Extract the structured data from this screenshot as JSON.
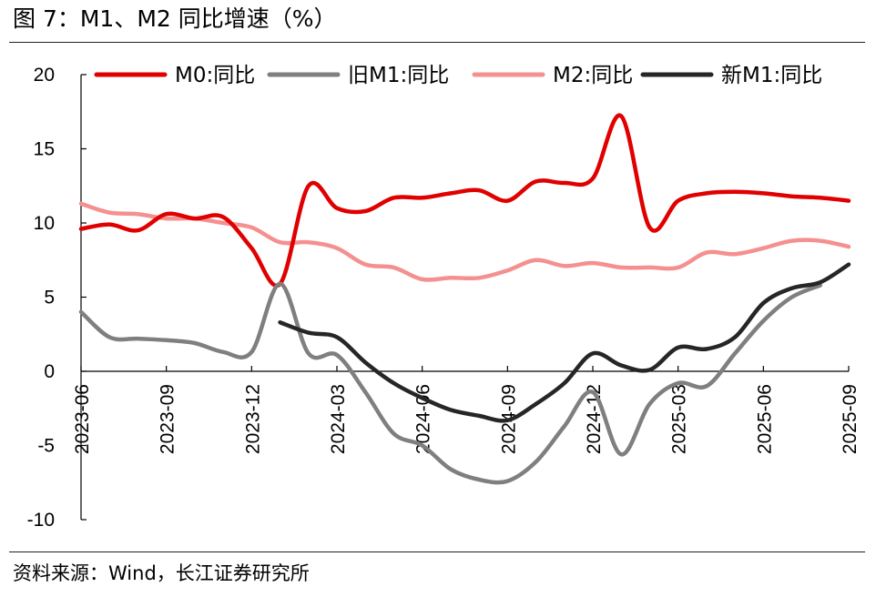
{
  "figure": {
    "title": "图 7：M1、M2 同比增速（%）",
    "source": "资料来源：Wind，长江证券研究所"
  },
  "chart_data": {
    "type": "line",
    "ylim": [
      -10,
      20
    ],
    "yticks": [
      20,
      15,
      10,
      5,
      0,
      -5,
      -10
    ],
    "x_start": "2023-06",
    "x_end": "2025-09",
    "xticks": [
      "2023-06",
      "2023-09",
      "2023-12",
      "2024-03",
      "2024-06",
      "2024-09",
      "2024-12",
      "2025-03",
      "2025-06",
      "2025-09"
    ],
    "legend_position": "top",
    "grid": false,
    "series": [
      {
        "name": "M0:同比",
        "color": "#e00000",
        "x": [
          "2023-06",
          "2023-07",
          "2023-08",
          "2023-09",
          "2023-10",
          "2023-11",
          "2023-12",
          "2024-01",
          "2024-02",
          "2024-03",
          "2024-04",
          "2024-05",
          "2024-06",
          "2024-07",
          "2024-08",
          "2024-09",
          "2024-10",
          "2024-11",
          "2024-12",
          "2025-01",
          "2025-02",
          "2025-03",
          "2025-04",
          "2025-05",
          "2025-06",
          "2025-07",
          "2025-08",
          "2025-09"
        ],
        "values": [
          9.6,
          9.9,
          9.5,
          10.6,
          10.3,
          10.4,
          8.3,
          5.9,
          12.5,
          11.0,
          10.8,
          11.7,
          11.7,
          12.0,
          12.2,
          11.5,
          12.8,
          12.7,
          13.0,
          17.2,
          9.7,
          11.5,
          12.0,
          12.1,
          12.0,
          11.8,
          11.7,
          11.5
        ]
      },
      {
        "name": "旧M1:同比",
        "color": "#7f7f7f",
        "x": [
          "2023-06",
          "2023-07",
          "2023-08",
          "2023-09",
          "2023-10",
          "2023-11",
          "2023-12",
          "2024-01",
          "2024-02",
          "2024-03",
          "2024-04",
          "2024-05",
          "2024-06",
          "2024-07",
          "2024-08",
          "2024-09",
          "2024-10",
          "2024-11",
          "2024-12",
          "2025-01",
          "2025-02",
          "2025-03",
          "2025-04",
          "2025-05",
          "2025-06",
          "2025-07",
          "2025-08"
        ],
        "values": [
          4.0,
          2.3,
          2.2,
          2.1,
          1.9,
          1.3,
          1.3,
          5.9,
          1.2,
          1.1,
          -1.4,
          -4.2,
          -5.0,
          -6.6,
          -7.3,
          -7.4,
          -6.1,
          -3.7,
          -1.4,
          -5.6,
          -2.2,
          -0.8,
          -1.0,
          1.2,
          3.4,
          5.0,
          5.8
        ]
      },
      {
        "name": "M2:同比",
        "color": "#f59090",
        "x": [
          "2023-06",
          "2023-07",
          "2023-08",
          "2023-09",
          "2023-10",
          "2023-11",
          "2023-12",
          "2024-01",
          "2024-02",
          "2024-03",
          "2024-04",
          "2024-05",
          "2024-06",
          "2024-07",
          "2024-08",
          "2024-09",
          "2024-10",
          "2024-11",
          "2024-12",
          "2025-01",
          "2025-02",
          "2025-03",
          "2025-04",
          "2025-05",
          "2025-06",
          "2025-07",
          "2025-08",
          "2025-09"
        ],
        "values": [
          11.3,
          10.7,
          10.6,
          10.3,
          10.3,
          10.0,
          9.7,
          8.7,
          8.7,
          8.3,
          7.2,
          7.0,
          6.2,
          6.3,
          6.3,
          6.8,
          7.5,
          7.1,
          7.3,
          7.0,
          7.0,
          7.0,
          8.0,
          7.9,
          8.3,
          8.8,
          8.8,
          8.4
        ]
      },
      {
        "name": "新M1:同比",
        "color": "#262626",
        "x": [
          "2024-01",
          "2024-02",
          "2024-03",
          "2024-04",
          "2024-05",
          "2024-06",
          "2024-07",
          "2024-08",
          "2024-09",
          "2024-10",
          "2024-11",
          "2024-12",
          "2025-01",
          "2025-02",
          "2025-03",
          "2025-04",
          "2025-05",
          "2025-06",
          "2025-07",
          "2025-08",
          "2025-09"
        ],
        "values": [
          3.3,
          2.6,
          2.3,
          0.6,
          -0.8,
          -1.8,
          -2.6,
          -3.0,
          -3.3,
          -2.2,
          -0.8,
          1.2,
          0.4,
          0.1,
          1.6,
          1.5,
          2.3,
          4.6,
          5.6,
          6.0,
          7.2
        ]
      }
    ]
  }
}
